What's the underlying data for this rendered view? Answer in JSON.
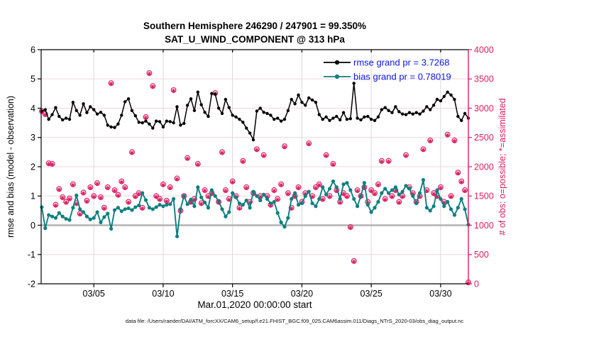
{
  "caption": {
    "text": "data file: /Users/raeder/DAI/ATM_forcXX/CAM6_setup/f.e21.FHIST_BGC.f09_025.CAM6assim.011/Diags_NTrS_2020-03/obs_diag_output.nc"
  },
  "colors": {
    "rmse": "#000000",
    "bias": "#0d7f80",
    "obs": "#dc1c5f",
    "legend_text": "#0b16ee",
    "grid_horizontal": "#f3d6de",
    "grid_vertical": "#d9d9d9",
    "zero_line": "#b3b3b3",
    "axis_black": "#000000"
  },
  "chart_data": {
    "type": "line",
    "title": "Southern Hemisphere 246290 / 247901 = 99.350%",
    "subtitle": "SAT_U_WIND_COMPONENT @ 313 hPa",
    "stats": {
      "possible_total": 247901,
      "assimilated_total": 246290,
      "percent_assimilated": "99.350%"
    },
    "x_axis": {
      "label": "Mar.01,2020 00:00:00 start",
      "range_days": [
        0,
        31
      ],
      "ticks": [
        {
          "day": 4,
          "label": "03/05"
        },
        {
          "day": 9,
          "label": "03/10"
        },
        {
          "day": 14,
          "label": "03/15"
        },
        {
          "day": 19,
          "label": "03/20"
        },
        {
          "day": 24,
          "label": "03/25"
        },
        {
          "day": 29,
          "label": "03/30"
        }
      ]
    },
    "y_axis_left": {
      "label": "rmse and bias (model - observation)",
      "range": [
        -2,
        6
      ],
      "ticks": [
        -2,
        -1,
        0,
        1,
        2,
        3,
        4,
        5,
        6
      ],
      "color": "#000000"
    },
    "y_axis_right": {
      "label": "# of obs: o=possible; *=assimilated",
      "range": [
        0,
        4000
      ],
      "ticks": [
        0,
        500,
        1000,
        1500,
        2000,
        2500,
        3000,
        3500,
        4000
      ],
      "color": "#dc1c5f"
    },
    "sampling": {
      "x_start_day": 0.25,
      "x_step_days": 0.25,
      "n_points": 124
    },
    "grid": {
      "horizontal": true,
      "vertical": true
    },
    "legend": {
      "position": "top-right-inside",
      "entries": [
        "rmse grand pr = 3.7268",
        "bias grand pr = 0.78019"
      ]
    },
    "series": [
      {
        "name": "rmse grand pr = 3.7268",
        "key": "rmse",
        "axis": "left",
        "color": "#000000",
        "marker": "filled-circle",
        "values": [
          3.9,
          3.95,
          3.62,
          3.78,
          4.02,
          3.72,
          3.6,
          3.66,
          3.62,
          4.2,
          3.92,
          3.76,
          4.15,
          3.85,
          4.05,
          3.95,
          3.8,
          3.86,
          3.76,
          3.42,
          3.36,
          3.34,
          3.46,
          3.76,
          4.22,
          4.32,
          3.92,
          3.74,
          3.52,
          3.5,
          3.56,
          3.46,
          3.32,
          3.56,
          3.54,
          3.36,
          3.56,
          3.54,
          3.5,
          4.05,
          3.42,
          3.48,
          4.1,
          4.32,
          3.92,
          4.55,
          4.12,
          3.86,
          3.72,
          4.5,
          4.48,
          4.0,
          3.82,
          4.3,
          4.02,
          3.76,
          3.7,
          3.62,
          3.52,
          3.32,
          3.15,
          2.92,
          3.9,
          4.0,
          3.86,
          3.82,
          3.76,
          3.62,
          3.66,
          3.56,
          3.62,
          3.92,
          4.3,
          4.15,
          4.45,
          4.2,
          4.1,
          4.35,
          4.28,
          4.2,
          3.78,
          3.62,
          3.7,
          3.58,
          3.66,
          3.72,
          3.6,
          3.85,
          3.62,
          3.64,
          4.85,
          3.66,
          3.6,
          3.7,
          3.72,
          3.62,
          3.58,
          3.7,
          3.95,
          4.02,
          3.92,
          3.85,
          4.05,
          3.88,
          3.8,
          3.78,
          3.85,
          3.8,
          3.85,
          3.8,
          3.9,
          4.05,
          3.95,
          4.1,
          4.3,
          4.25,
          4.4,
          4.55,
          4.45,
          4.3,
          3.72,
          3.58,
          3.82,
          3.66
        ]
      },
      {
        "name": "bias grand pr = 0.78019",
        "key": "bias",
        "axis": "left",
        "color": "#0d7f80",
        "marker": "filled-circle",
        "values": [
          0.62,
          -0.1,
          0.35,
          0.3,
          0.25,
          0.42,
          0.3,
          0.22,
          0.18,
          0.6,
          1.02,
          0.55,
          0.45,
          0.3,
          0.2,
          0.25,
          0.45,
          0.1,
          0.28,
          0.4,
          -0.12,
          0.52,
          0.6,
          0.48,
          0.55,
          0.58,
          0.52,
          0.62,
          0.68,
          1.1,
          0.86,
          0.6,
          0.55,
          0.62,
          0.7,
          0.65,
          0.7,
          0.72,
          0.9,
          -0.38,
          0.55,
          1.0,
          0.72,
          0.88,
          0.65,
          1.3,
          0.95,
          0.78,
          0.6,
          1.2,
          1.0,
          0.82,
          0.55,
          0.3,
          0.45,
          1.1,
          0.95,
          0.75,
          0.7,
          0.85,
          0.6,
          1.15,
          1.0,
          0.85,
          1.05,
          0.9,
          0.75,
          0.8,
          0.42,
          0.1,
          -0.05,
          0.25,
          0.9,
          1.1,
          0.7,
          0.75,
          1.0,
          1.15,
          0.75,
          0.65,
          0.9,
          1.3,
          1.05,
          1.25,
          1.5,
          1.3,
          0.9,
          1.4,
          1.45,
          1.2,
          0.9,
          0.65,
          1.0,
          1.45,
          0.7,
          0.45,
          0.6,
          0.8,
          1.1,
          1.25,
          1.1,
          1.2,
          1.3,
          1.05,
          1.15,
          1.35,
          1.25,
          1.0,
          0.75,
          1.1,
          1.55,
          0.6,
          0.5,
          0.65,
          1.2,
          0.9,
          0.65,
          0.8,
          0.55,
          0.35,
          0.6,
          0.9,
          0.55,
          0.02
        ]
      },
      {
        "name": "# of obs possible",
        "key": "obs_possible",
        "axis": "right",
        "color": "#dc1c5f",
        "marker": "open-circle",
        "values": [
          2950,
          2900,
          2060,
          2050,
          1350,
          1620,
          1480,
          1400,
          1460,
          1700,
          1380,
          1200,
          1560,
          1420,
          1650,
          1500,
          1720,
          1480,
          1300,
          1650,
          3430,
          1600,
          1520,
          1750,
          1650,
          1400,
          2250,
          1500,
          1550,
          1300,
          2850,
          3600,
          3380,
          1500,
          1450,
          1700,
          1420,
          1650,
          3310,
          1800,
          1250,
          1500,
          2150,
          1400,
          1450,
          2050,
          1380,
          1600,
          1500,
          1550,
          3260,
          1400,
          2250,
          1600,
          1450,
          1750,
          1500,
          1300,
          2100,
          1650,
          1400,
          1550,
          2300,
          1500,
          2200,
          1500,
          1350,
          1600,
          1450,
          1700,
          2350,
          1550,
          1300,
          1500,
          1650,
          1400,
          1550,
          2400,
          1500,
          1650,
          1700,
          1450,
          2200,
          1500,
          2050,
          1600,
          1400,
          1550,
          1500,
          970,
          390,
          1600,
          1500,
          1650,
          1400,
          1600,
          1550,
          1700,
          2100,
          1450,
          2100,
          1500,
          1600,
          1400,
          1500,
          2200,
          1650,
          1550,
          1400,
          1500,
          2300,
          1600,
          2450,
          1550,
          1500,
          1650,
          1400,
          2550,
          1500,
          2450,
          1900,
          1750,
          1600,
          25
        ]
      },
      {
        "name": "# of obs assimilated",
        "key": "obs_assimilated",
        "axis": "right",
        "color": "#dc1c5f",
        "marker": "asterisk",
        "values": [
          2937,
          2887,
          2047,
          2037,
          1337,
          1607,
          1467,
          1387,
          1447,
          1687,
          1367,
          1187,
          1547,
          1407,
          1637,
          1487,
          1707,
          1467,
          1287,
          1637,
          3417,
          1587,
          1507,
          1737,
          1637,
          1387,
          2237,
          1487,
          1537,
          1287,
          2837,
          3587,
          3367,
          1487,
          1437,
          1687,
          1407,
          1637,
          3297,
          1787,
          1237,
          1487,
          2137,
          1387,
          1437,
          2037,
          1367,
          1587,
          1487,
          1537,
          3247,
          1387,
          2237,
          1587,
          1437,
          1737,
          1487,
          1287,
          2087,
          1637,
          1387,
          1537,
          2287,
          1487,
          2187,
          1487,
          1337,
          1587,
          1437,
          1687,
          2337,
          1537,
          1287,
          1487,
          1637,
          1387,
          1537,
          2387,
          1487,
          1637,
          1687,
          1437,
          2187,
          1487,
          2037,
          1587,
          1387,
          1537,
          1487,
          957,
          377,
          1587,
          1487,
          1637,
          1387,
          1587,
          1537,
          1687,
          2087,
          1437,
          2087,
          1487,
          1587,
          1387,
          1487,
          2187,
          1637,
          1537,
          1387,
          1487,
          2287,
          1587,
          2437,
          1537,
          1487,
          1637,
          1387,
          2537,
          1487,
          2437,
          1887,
          1737,
          1587,
          12
        ]
      }
    ]
  }
}
